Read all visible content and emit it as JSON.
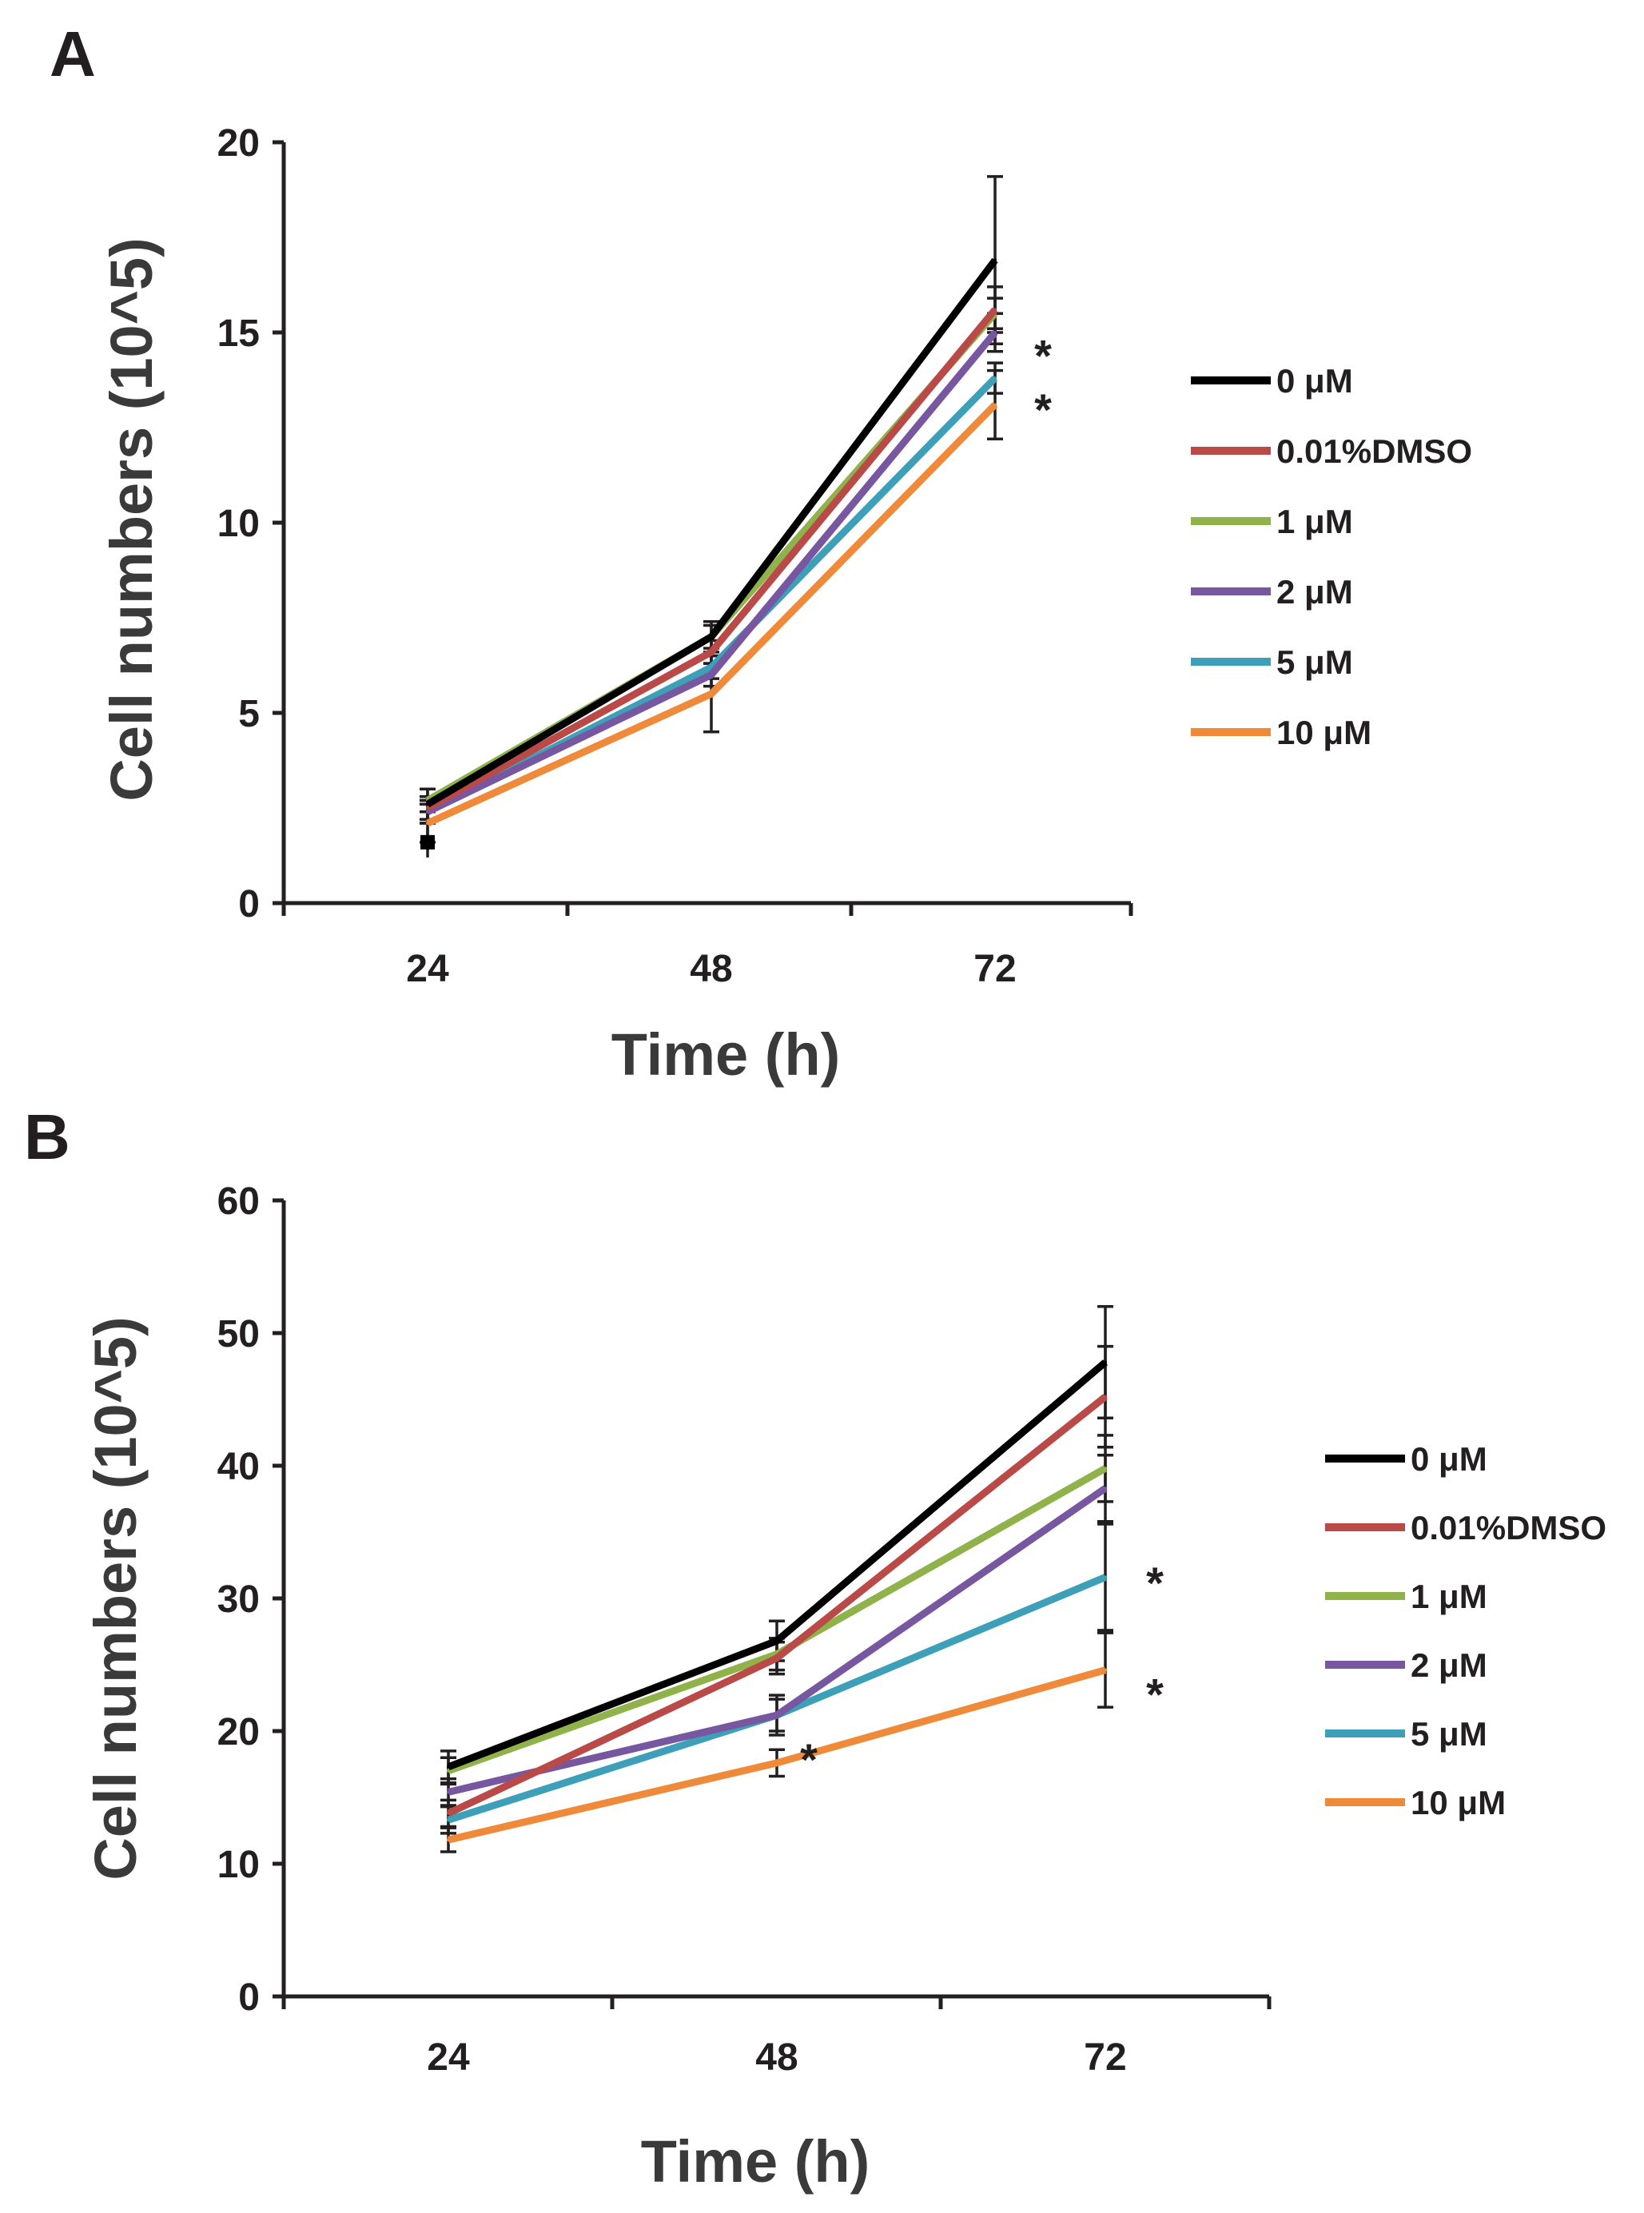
{
  "chart_data": [
    {
      "type": "line",
      "panel_label": "A",
      "xlabel": "Time (h)",
      "ylabel": "Cell numbers (10^5)",
      "categories": [
        "24",
        "48",
        "72"
      ],
      "ylim": [
        0,
        20
      ],
      "yticks": [
        "0",
        "5",
        "10",
        "15",
        "20"
      ],
      "grid": false,
      "legend_position": "right",
      "series": [
        {
          "name": "0 μM",
          "color": "#000000",
          "values": [
            2.6,
            7.0,
            16.9
          ],
          "errors": [
            0.4,
            0.3,
            2.2
          ]
        },
        {
          "name": "0.01%DMSO",
          "color": "#b94a48",
          "values": [
            2.5,
            6.6,
            15.6
          ],
          "errors": [
            0.3,
            0.3,
            0.6
          ]
        },
        {
          "name": "1 μM",
          "color": "#8fb24a",
          "values": [
            2.7,
            7.0,
            15.5
          ],
          "errors": [
            0.3,
            0.4,
            0.4
          ]
        },
        {
          "name": "2 μM",
          "color": "#7657a0",
          "values": [
            2.4,
            6.0,
            15.0
          ],
          "errors": [
            0.3,
            0.3,
            0.5
          ]
        },
        {
          "name": "5 μM",
          "color": "#3da0b8",
          "values": [
            2.4,
            6.2,
            13.8
          ],
          "errors": [
            0.3,
            0.3,
            0.4
          ]
        },
        {
          "name": "10 μM",
          "color": "#ef8a3a",
          "values": [
            2.1,
            5.5,
            13.1
          ],
          "errors": [
            0.5,
            1.0,
            0.9
          ]
        }
      ],
      "extra_points": [
        {
          "x": "24",
          "y": 1.6,
          "err": 0.4,
          "color": "#000000"
        }
      ],
      "annotations": [
        {
          "text": "*",
          "x": "72",
          "y": 14.4
        },
        {
          "text": "*",
          "x": "72",
          "y": 13.4
        }
      ]
    },
    {
      "type": "line",
      "panel_label": "B",
      "xlabel": "Time (h)",
      "ylabel": "Cell numbers (10^5)",
      "categories": [
        "24",
        "48",
        "72"
      ],
      "ylim": [
        0,
        60
      ],
      "yticks": [
        "0",
        "10",
        "20",
        "30",
        "40",
        "50",
        "60"
      ],
      "grid": false,
      "legend_position": "right",
      "series": [
        {
          "name": "0 μM",
          "color": "#000000",
          "values": [
            17.3,
            26.8,
            47.8
          ],
          "errors": [
            1.2,
            1.5,
            4.2
          ]
        },
        {
          "name": "0.01%DMSO",
          "color": "#b94a48",
          "values": [
            13.8,
            25.5,
            45.2
          ],
          "errors": [
            1.0,
            1.2,
            3.8
          ]
        },
        {
          "name": "1 μM",
          "color": "#8fb24a",
          "values": [
            17.0,
            25.8,
            39.8
          ],
          "errors": [
            1.0,
            1.2,
            2.5
          ]
        },
        {
          "name": "2 μM",
          "color": "#7657a0",
          "values": [
            15.4,
            21.2,
            38.3
          ],
          "errors": [
            1.0,
            1.5,
            2.5
          ]
        },
        {
          "name": "5 μM",
          "color": "#3da0b8",
          "values": [
            13.3,
            21.2,
            31.6
          ],
          "errors": [
            1.0,
            1.2,
            4.0
          ]
        },
        {
          "name": "10 μM",
          "color": "#ef8a3a",
          "values": [
            11.8,
            17.6,
            24.6
          ],
          "errors": [
            0.9,
            1.0,
            2.8
          ]
        }
      ],
      "annotations": [
        {
          "text": "*",
          "x": "72",
          "y": 31.8
        },
        {
          "text": "*",
          "x": "72",
          "y": 24.0
        },
        {
          "text": "*",
          "x": "48",
          "y": 18.5
        }
      ]
    }
  ]
}
